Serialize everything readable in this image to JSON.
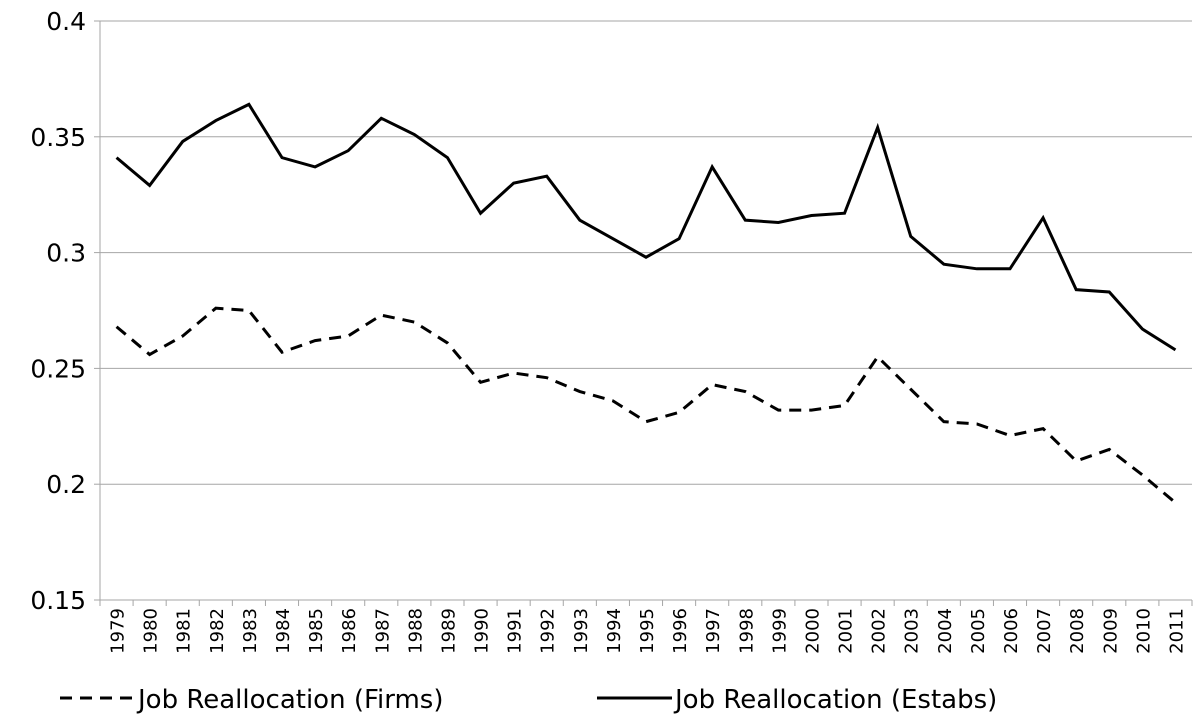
{
  "chart_data": {
    "type": "line",
    "categories": [
      "1979",
      "1980",
      "1981",
      "1982",
      "1983",
      "1984",
      "1985",
      "1986",
      "1987",
      "1988",
      "1989",
      "1990",
      "1991",
      "1992",
      "1993",
      "1994",
      "1995",
      "1996",
      "1997",
      "1998",
      "1999",
      "2000",
      "2001",
      "2002",
      "2003",
      "2004",
      "2005",
      "2006",
      "2007",
      "2008",
      "2009",
      "2010",
      "2011"
    ],
    "series": [
      {
        "name": "Job Reallocation (Firms)",
        "color": "#000000",
        "dashed": true,
        "values": [
          0.268,
          0.256,
          0.264,
          0.276,
          0.275,
          0.257,
          0.262,
          0.264,
          0.273,
          0.27,
          0.261,
          0.244,
          0.248,
          0.246,
          0.24,
          0.236,
          0.227,
          0.231,
          0.243,
          0.24,
          0.232,
          0.232,
          0.234,
          0.255,
          0.241,
          0.227,
          0.226,
          0.221,
          0.224,
          0.21,
          0.215,
          0.204,
          0.192
        ]
      },
      {
        "name": "Job Reallocation (Estabs)",
        "color": "#000000",
        "dashed": false,
        "values": [
          0.341,
          0.329,
          0.348,
          0.357,
          0.364,
          0.341,
          0.337,
          0.344,
          0.358,
          0.351,
          0.341,
          0.317,
          0.33,
          0.333,
          0.314,
          0.306,
          0.298,
          0.306,
          0.337,
          0.314,
          0.313,
          0.316,
          0.317,
          0.354,
          0.307,
          0.295,
          0.293,
          0.293,
          0.315,
          0.284,
          0.283,
          0.267,
          0.258
        ]
      }
    ],
    "ylim": [
      0.15,
      0.4
    ],
    "yticks": [
      0.15,
      0.2,
      0.25,
      0.3,
      0.35,
      0.4
    ],
    "grid": true,
    "legend": "bottom"
  }
}
